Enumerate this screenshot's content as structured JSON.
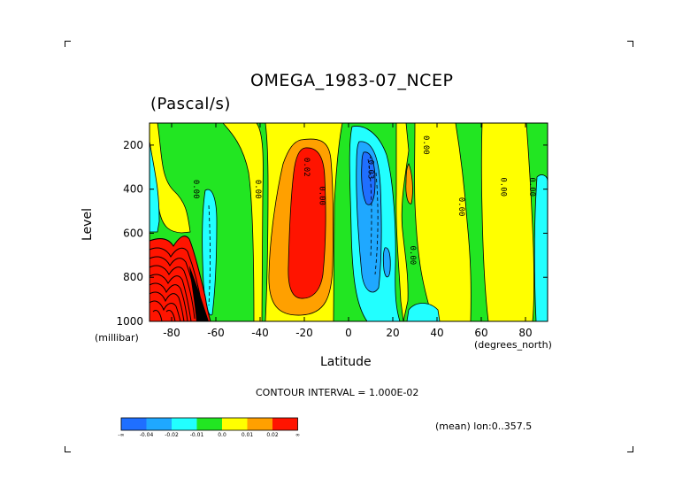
{
  "title": "OMEGA_1983-07_NCEP",
  "units": "(Pascal/s)",
  "ylabel": "Level",
  "yunit": "(millibar)",
  "xlabel": "Latitude",
  "xunit": "(degrees_north)",
  "contour_interval": "CONTOUR INTERVAL = 1.000E-02",
  "mean_note": "(mean) lon:0..357.5",
  "chart_data": {
    "type": "heatmap",
    "variable": "OMEGA",
    "x_ticks": [
      -80,
      -60,
      -40,
      -20,
      0,
      20,
      40,
      60,
      80
    ],
    "y_ticks": [
      200,
      400,
      600,
      800,
      1000
    ],
    "xlim": [
      -90,
      90
    ],
    "ylim": [
      1000,
      100
    ],
    "contour_labels": [
      {
        "lat": -70,
        "lev": 400,
        "text": "0.00"
      },
      {
        "lat": -42,
        "lev": 400,
        "text": "0.00"
      },
      {
        "lat": -20,
        "lev": 300,
        "text": "0.02"
      },
      {
        "lat": -13,
        "lev": 430,
        "text": "0.00"
      },
      {
        "lat": 9,
        "lev": 300,
        "text": "-0.03"
      },
      {
        "lat": 34,
        "lev": 200,
        "text": "0.00"
      },
      {
        "lat": 28,
        "lev": 700,
        "text": "0.00"
      },
      {
        "lat": 50,
        "lev": 480,
        "text": "0.00"
      },
      {
        "lat": 69,
        "lev": 390,
        "text": "0.00"
      },
      {
        "lat": 82,
        "lev": 390,
        "text": "0.00"
      }
    ],
    "colorbar": {
      "labels": [
        "-∞",
        "-0.04",
        "-0.02",
        "-0.01",
        "0.0",
        "0.01",
        "0.02",
        "∞"
      ],
      "colors": [
        "#1f6fff",
        "#1fa8ff",
        "#22ffff",
        "#22e622",
        "#ffff00",
        "#ffa000",
        "#ff1400"
      ]
    }
  }
}
